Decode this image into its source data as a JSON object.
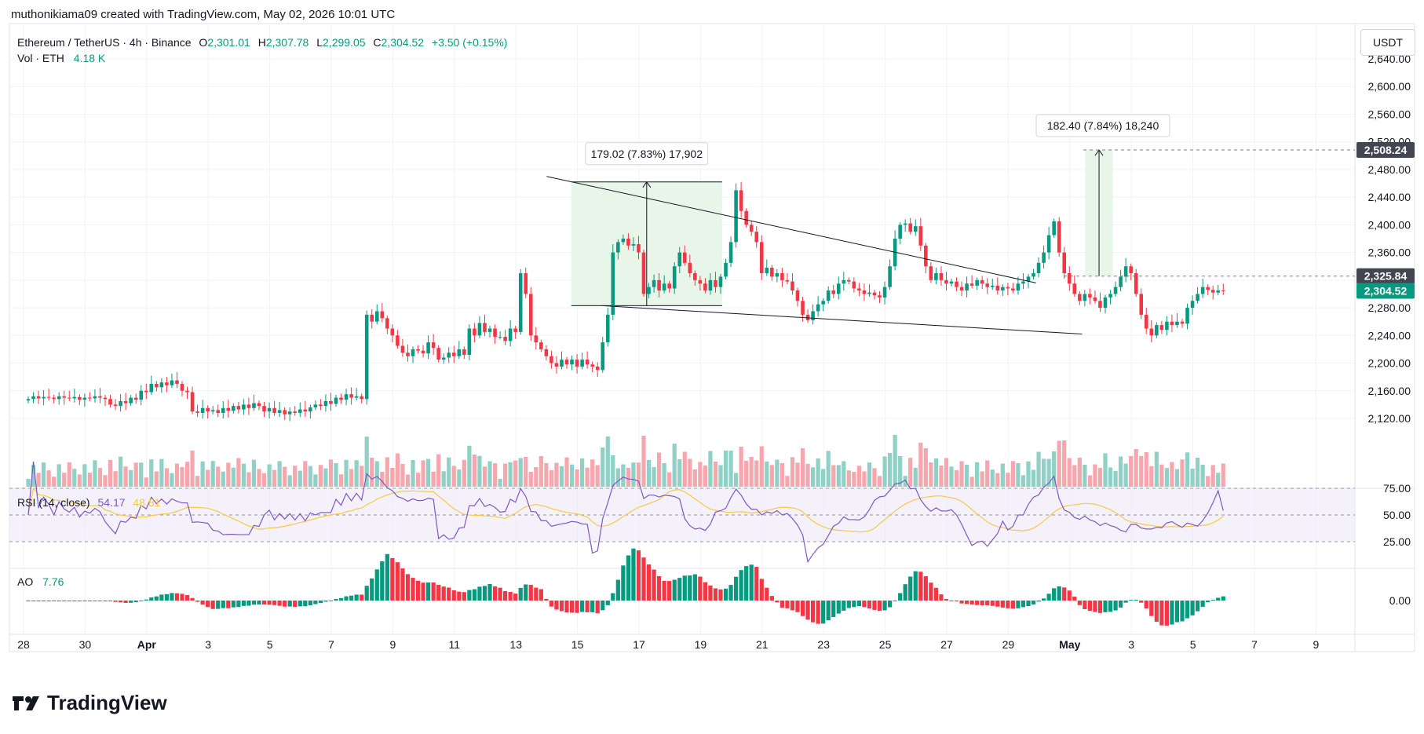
{
  "header": {
    "credit": "muthonikiama09 created with TradingView.com, May 02, 2026 10:01 UTC"
  },
  "legend": {
    "symbol": "Ethereum / TetherUS · 4h · Binance",
    "open_label": "O",
    "open": "2,301.01",
    "high_label": "H",
    "high": "2,307.78",
    "low_label": "L",
    "low": "2,299.05",
    "close_label": "C",
    "close": "2,304.52",
    "change": "+3.50 (+0.15%)",
    "vol_label": "Vol · ETH",
    "vol": "4.18 K",
    "rsi_label": "RSI (14, close)",
    "rsi": "54.17",
    "rsi_ma": "48.81",
    "ao_label": "AO",
    "ao": "7.76"
  },
  "unit_button": "USDT",
  "brand": "TradingView",
  "colors": {
    "up": "#089981",
    "down": "#f23645",
    "up_vol": "#8fd1c6",
    "down_vol": "#f6a7ae",
    "rsi": "#7e57c2",
    "rsi_ma": "#f7c948",
    "measure_fill": "#e8f5e9"
  },
  "chart_data": {
    "type": "candlestick",
    "symbol": "ETH/USDT",
    "timeframe": "4h",
    "price_axis": {
      "min": 2100,
      "max": 2680,
      "ticks": [
        2120,
        2160,
        2200,
        2240,
        2280,
        2320,
        2360,
        2400,
        2440,
        2480,
        2520,
        2560,
        2600,
        2640
      ]
    },
    "date_axis": [
      "28",
      "30",
      "Apr",
      "3",
      "5",
      "7",
      "9",
      "11",
      "13",
      "15",
      "17",
      "19",
      "21",
      "23",
      "25",
      "27",
      "29",
      "May",
      "3",
      "5",
      "7",
      "9"
    ],
    "price_tags": [
      {
        "value": "2,508.24",
        "kind": "target"
      },
      {
        "value": "2,325.84",
        "kind": "breakout"
      },
      {
        "value": "2,304.52",
        "kind": "last"
      }
    ],
    "measurements": [
      {
        "text": "179.02 (7.83%) 17,902",
        "from": 2283,
        "to": 2462
      },
      {
        "text": "182.40 (7.84%) 18,240",
        "from": 2325.84,
        "to": 2508.24
      }
    ],
    "wedge": {
      "upper": [
        [
          17.0,
          2470
        ],
        [
          32.9,
          2316
        ]
      ],
      "lower": [
        [
          18.8,
          2283
        ],
        [
          34.4,
          2242
        ]
      ]
    },
    "rsi": {
      "levels": [
        25,
        50,
        75
      ],
      "ticks": [
        "75.00",
        "50.00",
        "25.00"
      ],
      "last": 54.17,
      "ma": 48.81
    },
    "ao": {
      "ticks": [
        "0.00"
      ],
      "last": 7.76
    },
    "closes": [
      2148,
      2152,
      2149,
      2151,
      2150,
      2148,
      2152,
      2150,
      2149,
      2151,
      2147,
      2150,
      2149,
      2152,
      2150,
      2148,
      2140,
      2138,
      2145,
      2142,
      2150,
      2147,
      2160,
      2158,
      2170,
      2165,
      2172,
      2168,
      2175,
      2170,
      2160,
      2158,
      2130,
      2128,
      2135,
      2130,
      2132,
      2128,
      2135,
      2131,
      2138,
      2133,
      2140,
      2135,
      2142,
      2138,
      2130,
      2135,
      2128,
      2132,
      2126,
      2130,
      2128,
      2133,
      2130,
      2136,
      2140,
      2138,
      2145,
      2141,
      2150,
      2147,
      2155,
      2150,
      2152,
      2148,
      2270,
      2260,
      2275,
      2265,
      2250,
      2240,
      2225,
      2215,
      2210,
      2220,
      2218,
      2214,
      2230,
      2222,
      2205,
      2208,
      2215,
      2210,
      2220,
      2212,
      2250,
      2240,
      2258,
      2245,
      2250,
      2238,
      2238,
      2232,
      2250,
      2245,
      2330,
      2300,
      2240,
      2230,
      2220,
      2210,
      2200,
      2195,
      2205,
      2198,
      2205,
      2195,
      2205,
      2198,
      2195,
      2190,
      2230,
      2270,
      2360,
      2375,
      2380,
      2370,
      2372,
      2360,
      2300,
      2310,
      2320,
      2305,
      2315,
      2308,
      2340,
      2360,
      2345,
      2330,
      2320,
      2315,
      2305,
      2320,
      2310,
      2325,
      2345,
      2375,
      2450,
      2420,
      2400,
      2390,
      2375,
      2330,
      2338,
      2325,
      2330,
      2320,
      2318,
      2305,
      2290,
      2270,
      2262,
      2275,
      2285,
      2290,
      2305,
      2300,
      2315,
      2320,
      2318,
      2308,
      2305,
      2300,
      2302,
      2298,
      2295,
      2310,
      2340,
      2380,
      2400,
      2402,
      2390,
      2398,
      2370,
      2340,
      2320,
      2330,
      2320,
      2315,
      2318,
      2310,
      2305,
      2315,
      2312,
      2320,
      2315,
      2310,
      2312,
      2305,
      2310,
      2308,
      2305,
      2315,
      2318,
      2325,
      2330,
      2345,
      2360,
      2385,
      2405,
      2360,
      2330,
      2315,
      2300,
      2290,
      2300,
      2295,
      2290,
      2280,
      2295,
      2300,
      2310,
      2325,
      2340,
      2330,
      2300,
      2270,
      2250,
      2240,
      2255,
      2248,
      2260,
      2255,
      2260,
      2257,
      2280,
      2290,
      2300,
      2310,
      2306,
      2302,
      2305,
      2304.52
    ]
  }
}
